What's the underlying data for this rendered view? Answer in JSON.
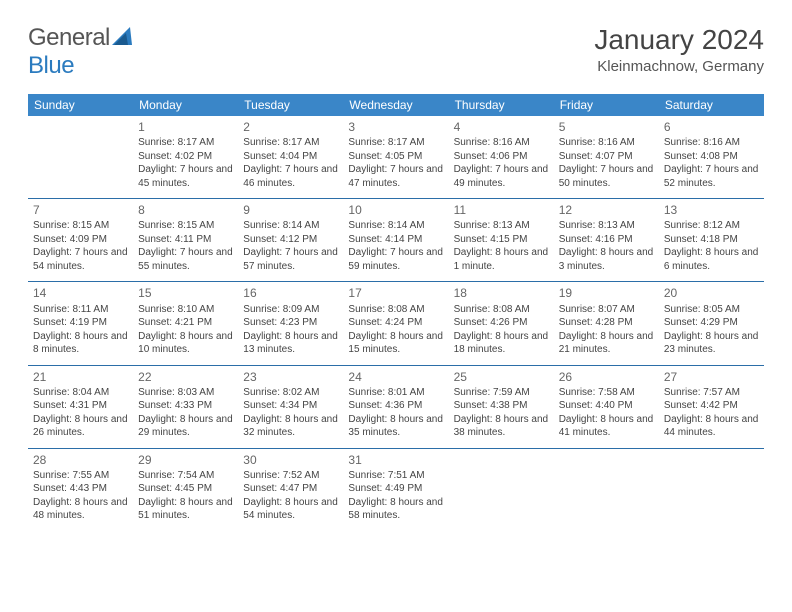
{
  "logo": {
    "text_general": "General",
    "text_blue": "Blue"
  },
  "title": "January 2024",
  "location": "Kleinmachnow, Germany",
  "colors": {
    "header_bg": "#3a86c8",
    "header_text": "#ffffff",
    "cell_border": "#2b6ea8",
    "body_text": "#444444",
    "daynum_text": "#666666",
    "logo_gray": "#555555",
    "logo_blue": "#2b7bbf",
    "page_bg": "#ffffff"
  },
  "typography": {
    "month_title_size_pt": 21,
    "location_size_pt": 11,
    "day_header_size_pt": 9,
    "daynum_size_pt": 9,
    "cell_text_size_pt": 7.5
  },
  "calendar": {
    "type": "table",
    "columns": [
      "Sunday",
      "Monday",
      "Tuesday",
      "Wednesday",
      "Thursday",
      "Friday",
      "Saturday"
    ],
    "weeks": [
      [
        null,
        {
          "day": "1",
          "sunrise": "Sunrise: 8:17 AM",
          "sunset": "Sunset: 4:02 PM",
          "daylight": "Daylight: 7 hours and 45 minutes."
        },
        {
          "day": "2",
          "sunrise": "Sunrise: 8:17 AM",
          "sunset": "Sunset: 4:04 PM",
          "daylight": "Daylight: 7 hours and 46 minutes."
        },
        {
          "day": "3",
          "sunrise": "Sunrise: 8:17 AM",
          "sunset": "Sunset: 4:05 PM",
          "daylight": "Daylight: 7 hours and 47 minutes."
        },
        {
          "day": "4",
          "sunrise": "Sunrise: 8:16 AM",
          "sunset": "Sunset: 4:06 PM",
          "daylight": "Daylight: 7 hours and 49 minutes."
        },
        {
          "day": "5",
          "sunrise": "Sunrise: 8:16 AM",
          "sunset": "Sunset: 4:07 PM",
          "daylight": "Daylight: 7 hours and 50 minutes."
        },
        {
          "day": "6",
          "sunrise": "Sunrise: 8:16 AM",
          "sunset": "Sunset: 4:08 PM",
          "daylight": "Daylight: 7 hours and 52 minutes."
        }
      ],
      [
        {
          "day": "7",
          "sunrise": "Sunrise: 8:15 AM",
          "sunset": "Sunset: 4:09 PM",
          "daylight": "Daylight: 7 hours and 54 minutes."
        },
        {
          "day": "8",
          "sunrise": "Sunrise: 8:15 AM",
          "sunset": "Sunset: 4:11 PM",
          "daylight": "Daylight: 7 hours and 55 minutes."
        },
        {
          "day": "9",
          "sunrise": "Sunrise: 8:14 AM",
          "sunset": "Sunset: 4:12 PM",
          "daylight": "Daylight: 7 hours and 57 minutes."
        },
        {
          "day": "10",
          "sunrise": "Sunrise: 8:14 AM",
          "sunset": "Sunset: 4:14 PM",
          "daylight": "Daylight: 7 hours and 59 minutes."
        },
        {
          "day": "11",
          "sunrise": "Sunrise: 8:13 AM",
          "sunset": "Sunset: 4:15 PM",
          "daylight": "Daylight: 8 hours and 1 minute."
        },
        {
          "day": "12",
          "sunrise": "Sunrise: 8:13 AM",
          "sunset": "Sunset: 4:16 PM",
          "daylight": "Daylight: 8 hours and 3 minutes."
        },
        {
          "day": "13",
          "sunrise": "Sunrise: 8:12 AM",
          "sunset": "Sunset: 4:18 PM",
          "daylight": "Daylight: 8 hours and 6 minutes."
        }
      ],
      [
        {
          "day": "14",
          "sunrise": "Sunrise: 8:11 AM",
          "sunset": "Sunset: 4:19 PM",
          "daylight": "Daylight: 8 hours and 8 minutes."
        },
        {
          "day": "15",
          "sunrise": "Sunrise: 8:10 AM",
          "sunset": "Sunset: 4:21 PM",
          "daylight": "Daylight: 8 hours and 10 minutes."
        },
        {
          "day": "16",
          "sunrise": "Sunrise: 8:09 AM",
          "sunset": "Sunset: 4:23 PM",
          "daylight": "Daylight: 8 hours and 13 minutes."
        },
        {
          "day": "17",
          "sunrise": "Sunrise: 8:08 AM",
          "sunset": "Sunset: 4:24 PM",
          "daylight": "Daylight: 8 hours and 15 minutes."
        },
        {
          "day": "18",
          "sunrise": "Sunrise: 8:08 AM",
          "sunset": "Sunset: 4:26 PM",
          "daylight": "Daylight: 8 hours and 18 minutes."
        },
        {
          "day": "19",
          "sunrise": "Sunrise: 8:07 AM",
          "sunset": "Sunset: 4:28 PM",
          "daylight": "Daylight: 8 hours and 21 minutes."
        },
        {
          "day": "20",
          "sunrise": "Sunrise: 8:05 AM",
          "sunset": "Sunset: 4:29 PM",
          "daylight": "Daylight: 8 hours and 23 minutes."
        }
      ],
      [
        {
          "day": "21",
          "sunrise": "Sunrise: 8:04 AM",
          "sunset": "Sunset: 4:31 PM",
          "daylight": "Daylight: 8 hours and 26 minutes."
        },
        {
          "day": "22",
          "sunrise": "Sunrise: 8:03 AM",
          "sunset": "Sunset: 4:33 PM",
          "daylight": "Daylight: 8 hours and 29 minutes."
        },
        {
          "day": "23",
          "sunrise": "Sunrise: 8:02 AM",
          "sunset": "Sunset: 4:34 PM",
          "daylight": "Daylight: 8 hours and 32 minutes."
        },
        {
          "day": "24",
          "sunrise": "Sunrise: 8:01 AM",
          "sunset": "Sunset: 4:36 PM",
          "daylight": "Daylight: 8 hours and 35 minutes."
        },
        {
          "day": "25",
          "sunrise": "Sunrise: 7:59 AM",
          "sunset": "Sunset: 4:38 PM",
          "daylight": "Daylight: 8 hours and 38 minutes."
        },
        {
          "day": "26",
          "sunrise": "Sunrise: 7:58 AM",
          "sunset": "Sunset: 4:40 PM",
          "daylight": "Daylight: 8 hours and 41 minutes."
        },
        {
          "day": "27",
          "sunrise": "Sunrise: 7:57 AM",
          "sunset": "Sunset: 4:42 PM",
          "daylight": "Daylight: 8 hours and 44 minutes."
        }
      ],
      [
        {
          "day": "28",
          "sunrise": "Sunrise: 7:55 AM",
          "sunset": "Sunset: 4:43 PM",
          "daylight": "Daylight: 8 hours and 48 minutes."
        },
        {
          "day": "29",
          "sunrise": "Sunrise: 7:54 AM",
          "sunset": "Sunset: 4:45 PM",
          "daylight": "Daylight: 8 hours and 51 minutes."
        },
        {
          "day": "30",
          "sunrise": "Sunrise: 7:52 AM",
          "sunset": "Sunset: 4:47 PM",
          "daylight": "Daylight: 8 hours and 54 minutes."
        },
        {
          "day": "31",
          "sunrise": "Sunrise: 7:51 AM",
          "sunset": "Sunset: 4:49 PM",
          "daylight": "Daylight: 8 hours and 58 minutes."
        },
        null,
        null,
        null
      ]
    ]
  }
}
